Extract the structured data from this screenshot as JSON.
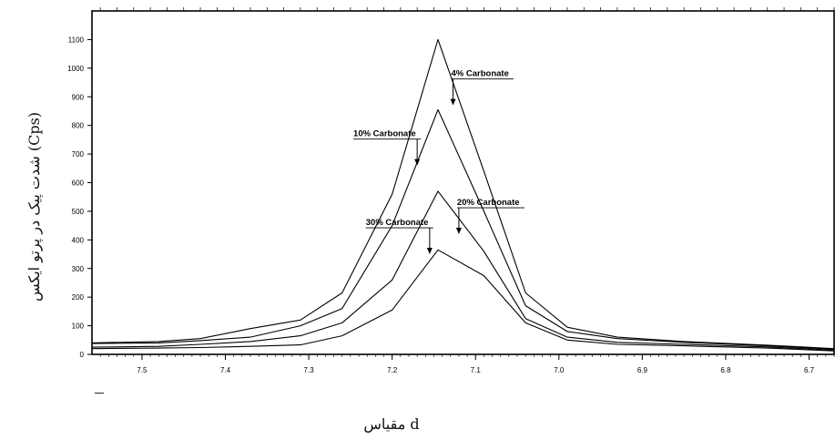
{
  "chart_data": {
    "type": "line",
    "xlabel": "مقیاس d",
    "ylabel": "شدت پیک در پرتو ایکس (Cps)",
    "xlim": [
      7.56,
      6.67
    ],
    "ylim": [
      0,
      1200
    ],
    "x_reversed": true,
    "x_ticks": [
      "7.5",
      "7.4",
      "7.3",
      "7.2",
      "7.1",
      "7.0",
      "6.9",
      "6.8",
      "6.7"
    ],
    "x_tick_values": [
      7.5,
      7.4,
      7.3,
      7.2,
      7.1,
      7.0,
      6.9,
      6.8,
      6.7
    ],
    "y_ticks": [
      "0",
      "100",
      "200",
      "300",
      "400",
      "500",
      "600",
      "700",
      "800",
      "900",
      "1000",
      "1100"
    ],
    "y_tick_values": [
      0,
      100,
      200,
      300,
      400,
      500,
      600,
      700,
      800,
      900,
      1000,
      1100
    ],
    "grid": false,
    "series": [
      {
        "name": "4% Carbonate",
        "points": [
          [
            7.56,
            40
          ],
          [
            7.48,
            45
          ],
          [
            7.43,
            55
          ],
          [
            7.37,
            90
          ],
          [
            7.31,
            120
          ],
          [
            7.26,
            215
          ],
          [
            7.2,
            560
          ],
          [
            7.145,
            1100
          ],
          [
            7.09,
            640
          ],
          [
            7.04,
            215
          ],
          [
            6.99,
            95
          ],
          [
            6.93,
            60
          ],
          [
            6.85,
            45
          ],
          [
            6.75,
            32
          ],
          [
            6.67,
            20
          ]
        ]
      },
      {
        "name": "10% Carbonate",
        "points": [
          [
            7.56,
            38
          ],
          [
            7.48,
            40
          ],
          [
            7.43,
            48
          ],
          [
            7.37,
            60
          ],
          [
            7.31,
            100
          ],
          [
            7.26,
            160
          ],
          [
            7.2,
            450
          ],
          [
            7.145,
            855
          ],
          [
            7.09,
            500
          ],
          [
            7.04,
            170
          ],
          [
            6.99,
            80
          ],
          [
            6.93,
            55
          ],
          [
            6.85,
            42
          ],
          [
            6.75,
            30
          ],
          [
            6.67,
            18
          ]
        ]
      },
      {
        "name": "20% Carbonate",
        "points": [
          [
            7.56,
            25
          ],
          [
            7.48,
            28
          ],
          [
            7.43,
            35
          ],
          [
            7.37,
            45
          ],
          [
            7.31,
            65
          ],
          [
            7.26,
            110
          ],
          [
            7.2,
            260
          ],
          [
            7.145,
            570
          ],
          [
            7.09,
            360
          ],
          [
            7.04,
            125
          ],
          [
            6.99,
            60
          ],
          [
            6.93,
            42
          ],
          [
            6.85,
            35
          ],
          [
            6.75,
            26
          ],
          [
            6.67,
            15
          ]
        ]
      },
      {
        "name": "30% Carbonate",
        "points": [
          [
            7.56,
            20
          ],
          [
            7.48,
            22
          ],
          [
            7.43,
            24
          ],
          [
            7.37,
            28
          ],
          [
            7.31,
            33
          ],
          [
            7.26,
            65
          ],
          [
            7.2,
            155
          ],
          [
            7.145,
            365
          ],
          [
            7.09,
            275
          ],
          [
            7.04,
            110
          ],
          [
            6.99,
            50
          ],
          [
            6.93,
            35
          ],
          [
            6.85,
            30
          ],
          [
            6.75,
            22
          ],
          [
            6.67,
            12
          ]
        ]
      }
    ],
    "annotations": [
      {
        "text": "4% Carbonate",
        "arrow_to": [
          7.127,
          870
        ]
      },
      {
        "text": "10% Carbonate",
        "arrow_to": [
          7.17,
          660
        ]
      },
      {
        "text": "20% Carbonate",
        "arrow_to": [
          7.12,
          420
        ]
      },
      {
        "text": "30% Carbonate",
        "arrow_to": [
          7.155,
          350
        ]
      }
    ]
  }
}
